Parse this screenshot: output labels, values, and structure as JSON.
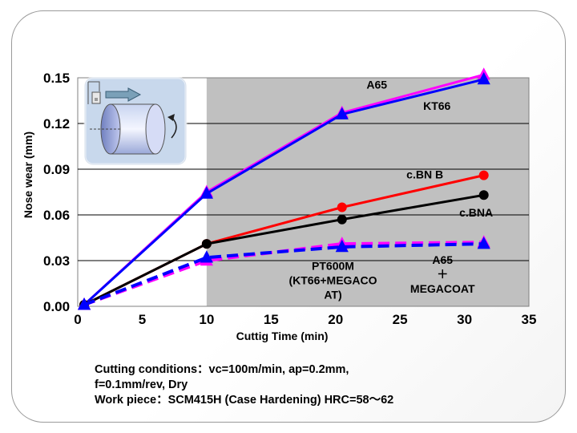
{
  "chart_data": {
    "type": "line",
    "title": "",
    "xlabel": "Cuttig Time (min)",
    "ylabel": "Nose wear (mm)",
    "xlim": [
      0,
      35
    ],
    "ylim": [
      0,
      0.15
    ],
    "x_ticks": [
      "0",
      "5",
      "10",
      "15",
      "20",
      "25",
      "30",
      "35"
    ],
    "y_ticks": [
      "0.00",
      "0.03",
      "0.06",
      "0.09",
      "0.12",
      "0.15"
    ],
    "grid": true,
    "series": [
      {
        "name": "A65",
        "color": "#ff00ff",
        "style": "solid",
        "marker": "triangle",
        "x": [
          0.5,
          10,
          20.5,
          31.5
        ],
        "y": [
          0.001,
          0.075,
          0.127,
          0.152
        ]
      },
      {
        "name": "KT66",
        "color": "#0000ff",
        "style": "solid",
        "marker": "triangle",
        "x": [
          0.5,
          10,
          20.5,
          31.5
        ],
        "y": [
          0.001,
          0.074,
          0.126,
          0.149
        ]
      },
      {
        "name": "c.BN B",
        "color": "#ff0000",
        "style": "solid",
        "marker": "circle",
        "x": [
          0.5,
          10,
          20.5,
          31.5
        ],
        "y": [
          0.001,
          0.041,
          0.065,
          0.086
        ]
      },
      {
        "name": "c.BNA",
        "color": "#000000",
        "style": "solid",
        "marker": "circle",
        "x": [
          0.5,
          10,
          20.5,
          31.5
        ],
        "y": [
          0.001,
          0.041,
          0.057,
          0.073
        ]
      },
      {
        "name": "A65 + MEGACOAT",
        "color": "#ff00ff",
        "style": "dashed",
        "marker": "triangle",
        "x": [
          0.5,
          10,
          20.5,
          31.5
        ],
        "y": [
          0.001,
          0.03,
          0.041,
          0.042
        ]
      },
      {
        "name": "PT600M (KT66+MEGACOAT)",
        "color": "#0000ff",
        "style": "dashed",
        "marker": "triangle",
        "x": [
          0.5,
          10,
          20.5,
          31.5
        ],
        "y": [
          0.001,
          0.032,
          0.039,
          0.041
        ]
      }
    ],
    "labels": {
      "a65": "A65",
      "kt66": "KT66",
      "cbnb": "c.BN B",
      "cbna": "c.BNA",
      "pt600m": [
        "PT600M",
        "(KT66+MEGACO",
        "AT)"
      ],
      "a65mc": [
        "A65",
        "＋",
        "MEGACOAT"
      ]
    }
  },
  "conditions": {
    "line1": "Cutting conditions：vc=100m/min, ap=0.2mm,",
    "line2": "f=0.1mm/rev, Dry",
    "line3": "Work piece：SCM415H (Case Hardening) HRC=58～62"
  }
}
